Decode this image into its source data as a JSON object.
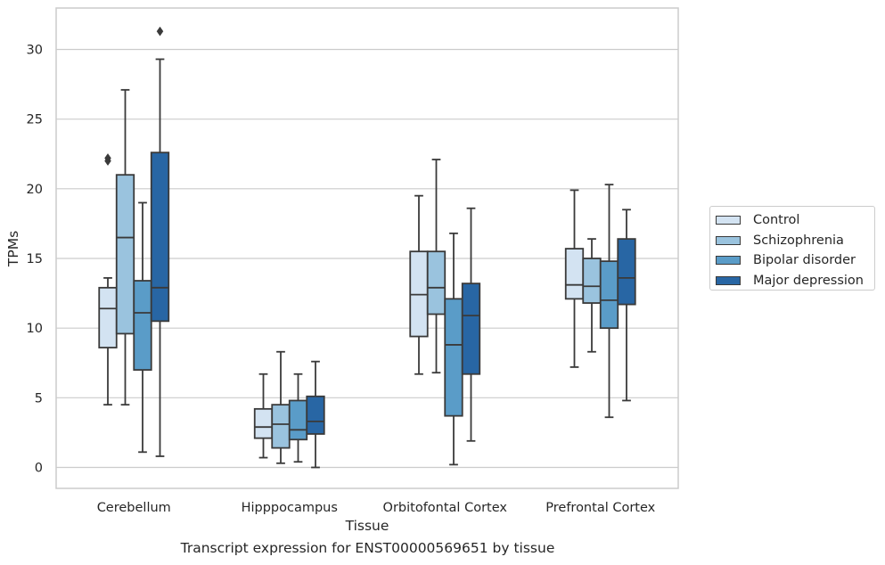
{
  "caption": "Transcript expression for ENST00000569651 by tissue",
  "chart_data": {
    "type": "box",
    "title": "",
    "xlabel": "Tissue",
    "ylabel": "TPMs",
    "ylim": [
      -1.5,
      33
    ],
    "yticks": [
      0,
      5,
      10,
      15,
      20,
      25,
      30
    ],
    "grid": "horizontal",
    "legend_position": "right",
    "categories": [
      "Cerebellum",
      "Hipppocampus",
      "Orbitofontal Cortex",
      "Prefrontal Cortex"
    ],
    "series": [
      {
        "name": "Control",
        "color": "#d3e3f2",
        "boxes": [
          {
            "whislo": 4.5,
            "q1": 8.6,
            "med": 11.4,
            "q3": 12.9,
            "whishi": 13.6,
            "fliers": [
              22.0,
              22.2
            ]
          },
          {
            "whislo": 0.7,
            "q1": 2.1,
            "med": 2.9,
            "q3": 4.2,
            "whishi": 6.7,
            "fliers": []
          },
          {
            "whislo": 6.7,
            "q1": 9.4,
            "med": 12.4,
            "q3": 15.5,
            "whishi": 19.5,
            "fliers": []
          },
          {
            "whislo": 7.2,
            "q1": 12.1,
            "med": 13.1,
            "q3": 15.7,
            "whishi": 19.9,
            "fliers": []
          }
        ]
      },
      {
        "name": "Schizophrenia",
        "color": "#9ac3de",
        "boxes": [
          {
            "whislo": 4.5,
            "q1": 9.6,
            "med": 16.5,
            "q3": 21.0,
            "whishi": 27.1,
            "fliers": []
          },
          {
            "whislo": 0.3,
            "q1": 1.4,
            "med": 3.1,
            "q3": 4.5,
            "whishi": 8.3,
            "fliers": []
          },
          {
            "whislo": 6.8,
            "q1": 11.0,
            "med": 12.9,
            "q3": 15.5,
            "whishi": 22.1,
            "fliers": []
          },
          {
            "whislo": 8.3,
            "q1": 11.8,
            "med": 13.0,
            "q3": 15.0,
            "whishi": 16.4,
            "fliers": []
          }
        ]
      },
      {
        "name": "Bipolar disorder",
        "color": "#5a9cc8",
        "boxes": [
          {
            "whislo": 1.1,
            "q1": 7.0,
            "med": 11.1,
            "q3": 13.4,
            "whishi": 19.0,
            "fliers": []
          },
          {
            "whislo": 0.4,
            "q1": 2.0,
            "med": 2.7,
            "q3": 4.8,
            "whishi": 6.7,
            "fliers": []
          },
          {
            "whislo": 0.2,
            "q1": 3.7,
            "med": 8.8,
            "q3": 12.1,
            "whishi": 16.8,
            "fliers": []
          },
          {
            "whislo": 3.6,
            "q1": 10.0,
            "med": 12.0,
            "q3": 14.8,
            "whishi": 20.3,
            "fliers": []
          }
        ]
      },
      {
        "name": "Major depression",
        "color": "#2866a4",
        "boxes": [
          {
            "whislo": 0.8,
            "q1": 10.5,
            "med": 12.9,
            "q3": 22.6,
            "whishi": 29.3,
            "fliers": [
              31.3
            ]
          },
          {
            "whislo": 0.0,
            "q1": 2.4,
            "med": 3.3,
            "q3": 5.1,
            "whishi": 7.6,
            "fliers": []
          },
          {
            "whislo": 1.9,
            "q1": 6.7,
            "med": 10.9,
            "q3": 13.2,
            "whishi": 18.6,
            "fliers": []
          },
          {
            "whislo": 4.8,
            "q1": 11.7,
            "med": 13.6,
            "q3": 16.4,
            "whishi": 18.5,
            "fliers": []
          }
        ]
      }
    ]
  }
}
